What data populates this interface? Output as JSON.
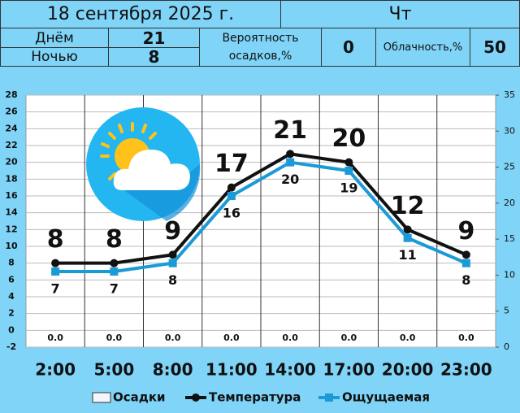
{
  "header": {
    "date": "18 сентября 2025 г.",
    "weekday": "Чт",
    "day_label": "Днём",
    "day_temp": "21",
    "night_label": "Ночью",
    "night_temp": "8",
    "precip_label": "Вероятность осадков,%",
    "precip_value": "0",
    "cloud_label": "Облачность,%",
    "cloud_value": "50"
  },
  "chart_data": {
    "type": "line",
    "categories": [
      "2:00",
      "5:00",
      "8:00",
      "11:00",
      "14:00",
      "17:00",
      "20:00",
      "23:00"
    ],
    "series": [
      {
        "name": "Осадки",
        "type": "bar",
        "axis": "y2",
        "color": "#f4f6fb",
        "values": [
          0,
          0,
          0,
          0,
          0,
          0,
          0,
          0
        ],
        "value_labels": [
          "0.0",
          "0.0",
          "0.0",
          "0.0",
          "0.0",
          "0.0",
          "0.0",
          "0.0"
        ]
      },
      {
        "name": "Температура",
        "type": "line",
        "color": "#111111",
        "marker": "circle",
        "values": [
          8,
          8,
          9,
          17,
          21,
          20,
          12,
          9
        ]
      },
      {
        "name": "Ощущаемая",
        "type": "line",
        "color": "#1a9ad6",
        "marker": "square",
        "values": [
          7,
          7,
          8,
          16,
          20,
          19,
          11,
          8
        ]
      }
    ],
    "ylim": [
      -2,
      28
    ],
    "yticks": [
      -2,
      0,
      2,
      4,
      6,
      8,
      10,
      12,
      14,
      16,
      18,
      20,
      22,
      24,
      26,
      28
    ],
    "y2lim": [
      0,
      35
    ],
    "y2ticks": [
      0,
      5,
      10,
      15,
      20,
      25,
      30,
      35
    ],
    "grid": true,
    "legend": "bottom"
  }
}
